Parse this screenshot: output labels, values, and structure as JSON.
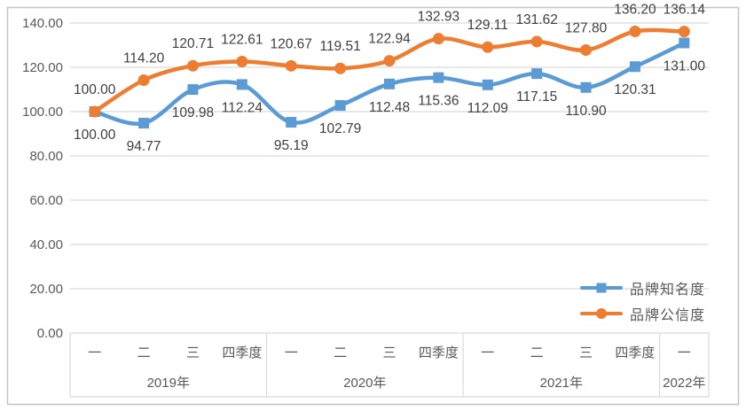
{
  "chart_data": {
    "type": "line",
    "title": "",
    "smoothed": true,
    "grid": true,
    "legend_position": "inside-right-bottom",
    "x_axis": {
      "quarter_labels": [
        "一",
        "二",
        "三",
        "四季度",
        "一",
        "二",
        "三",
        "四季度",
        "一",
        "二",
        "三",
        "四季度",
        "一"
      ],
      "year_groups": [
        {
          "label": "2019年",
          "span": 4
        },
        {
          "label": "2020年",
          "span": 4
        },
        {
          "label": "2021年",
          "span": 4
        },
        {
          "label": "2022年",
          "span": 1
        }
      ]
    },
    "y_axis": {
      "min": 0,
      "max": 140,
      "step": 20,
      "tick_labels": [
        "0.00",
        "20.00",
        "40.00",
        "60.00",
        "80.00",
        "100.00",
        "120.00",
        "140.00"
      ]
    },
    "series": [
      {
        "name": "品牌知名度",
        "color": "#5B9BD5",
        "marker": "square",
        "label_position": "below",
        "values": [
          100.0,
          94.77,
          109.98,
          112.24,
          95.19,
          102.79,
          112.48,
          115.36,
          112.09,
          117.15,
          110.9,
          120.31,
          131.0
        ]
      },
      {
        "name": "品牌公信度",
        "color": "#ED7D31",
        "marker": "circle",
        "label_position": "above",
        "values": [
          100.0,
          114.2,
          120.71,
          122.61,
          120.67,
          119.51,
          122.94,
          132.93,
          129.11,
          131.62,
          127.8,
          136.2,
          136.14
        ]
      }
    ],
    "colors": {
      "gridline": "#D9D9D9",
      "axis_table_line": "#D9D9D9",
      "tick_text": "#595959",
      "data_label_text": "#404040",
      "chart_border": "#C3C3C3",
      "background": "#FFFFFF"
    }
  }
}
